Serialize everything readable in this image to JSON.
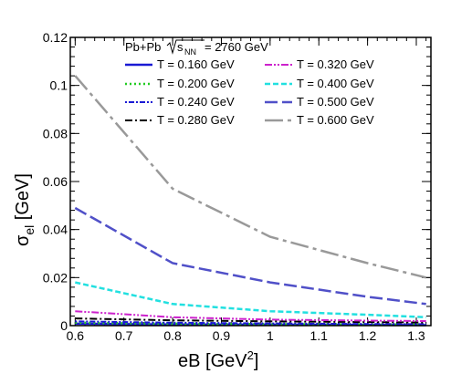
{
  "chart_data": {
    "type": "line",
    "header": {
      "system": "Pb+Pb",
      "sqrt_label": "s",
      "sqrt_sub": "NN",
      "energy": "= 2760 GeV"
    },
    "xlabel": {
      "main": "eB [GeV",
      "sup": "2",
      "end": "]"
    },
    "ylabel": {
      "main": "σ",
      "sub": "el",
      "rest": " [GeV]"
    },
    "xlim": [
      0.59,
      1.33
    ],
    "ylim": [
      0,
      0.12
    ],
    "x_ticks": [
      0.6,
      0.7,
      0.8,
      0.9,
      1.0,
      1.1,
      1.2,
      1.3
    ],
    "x_tick_labels": [
      "0.6",
      "0.7",
      "0.8",
      "0.9",
      "1",
      "1.1",
      "1.2",
      "1.3"
    ],
    "y_ticks": [
      0,
      0.02,
      0.04,
      0.06,
      0.08,
      0.1,
      0.12
    ],
    "y_tick_labels": [
      "0",
      "0.02",
      "0.04",
      "0.06",
      "0.08",
      "0.1",
      "0.12"
    ],
    "x": [
      0.6,
      0.8,
      1.0,
      1.2,
      1.32
    ],
    "series": [
      {
        "name": "T = 0.160 GeV",
        "color": "#1a1ad4",
        "dash": "",
        "width": 2.5,
        "values": [
          0.0008,
          0.0005,
          0.0004,
          0.0003,
          0.0002
        ]
      },
      {
        "name": "T = 0.200 GeV",
        "color": "#22cc22",
        "dash": "2,3",
        "width": 2.5,
        "values": [
          0.0012,
          0.0008,
          0.0006,
          0.0005,
          0.0004
        ]
      },
      {
        "name": "T = 0.240 GeV",
        "color": "#1a1ad4",
        "dash": "2,2,6,2",
        "width": 2,
        "values": [
          0.0018,
          0.0012,
          0.0009,
          0.0007,
          0.0006
        ]
      },
      {
        "name": "T = 0.280 GeV",
        "color": "#000000",
        "dash": "8,3,2,3",
        "width": 2,
        "values": [
          0.003,
          0.0022,
          0.0018,
          0.0015,
          0.0013
        ]
      },
      {
        "name": "T = 0.320 GeV",
        "color": "#cc22cc",
        "dash": "8,2,2,2,2,2",
        "width": 2,
        "values": [
          0.006,
          0.0035,
          0.0025,
          0.0021,
          0.0019
        ]
      },
      {
        "name": "T = 0.400 GeV",
        "color": "#22e0e0",
        "dash": "6,3",
        "width": 2.5,
        "values": [
          0.018,
          0.009,
          0.006,
          0.0045,
          0.0035
        ]
      },
      {
        "name": "T = 0.500 GeV",
        "color": "#5050c8",
        "dash": "14,5",
        "width": 2.5,
        "values": [
          0.049,
          0.026,
          0.018,
          0.012,
          0.009
        ]
      },
      {
        "name": "T = 0.600 GeV",
        "color": "#999999",
        "dash": "20,5,4,5",
        "width": 2.5,
        "values": [
          0.104,
          0.057,
          0.037,
          0.026,
          0.02
        ]
      }
    ]
  }
}
